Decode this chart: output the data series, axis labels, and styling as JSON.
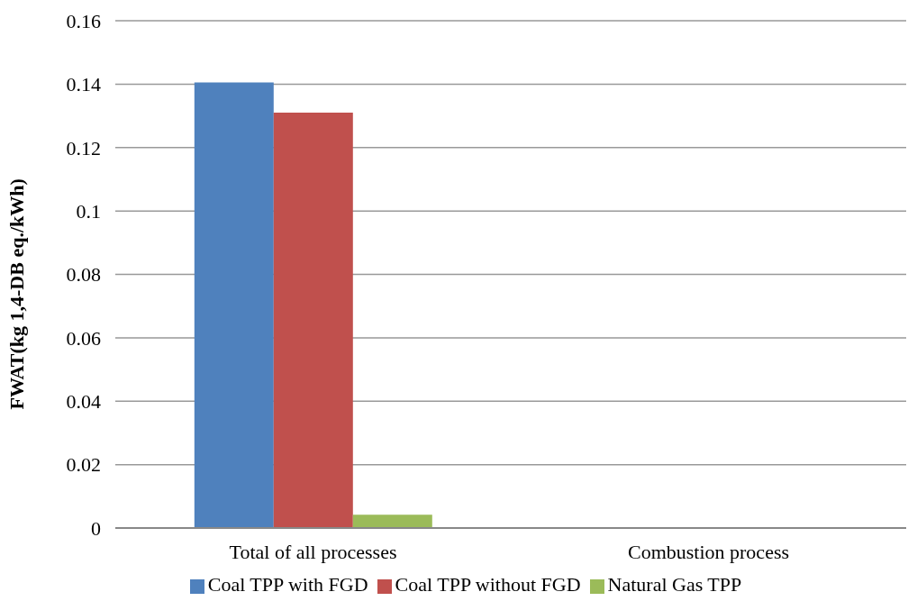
{
  "chart_data": {
    "type": "bar",
    "ylabel": "FWAT(kg 1,4-DB eq./kWh)",
    "categories": [
      "Total of all processes",
      "Combustion process"
    ],
    "series": [
      {
        "name": "Coal TPP with FGD",
        "color": "#4f81bd",
        "values": [
          0.1405,
          0.0003
        ]
      },
      {
        "name": "Coal TPP without FGD",
        "color": "#c0504d",
        "values": [
          0.131,
          0.0002
        ]
      },
      {
        "name": "Natural Gas TPP",
        "color": "#9bbb59",
        "values": [
          0.0042,
          0
        ]
      }
    ],
    "ylim": [
      0,
      0.16
    ],
    "yticks": [
      0,
      0.02,
      0.04,
      0.06,
      0.08,
      0.1,
      0.12,
      0.14,
      0.16
    ],
    "grid": "y",
    "legend": "bottom"
  }
}
